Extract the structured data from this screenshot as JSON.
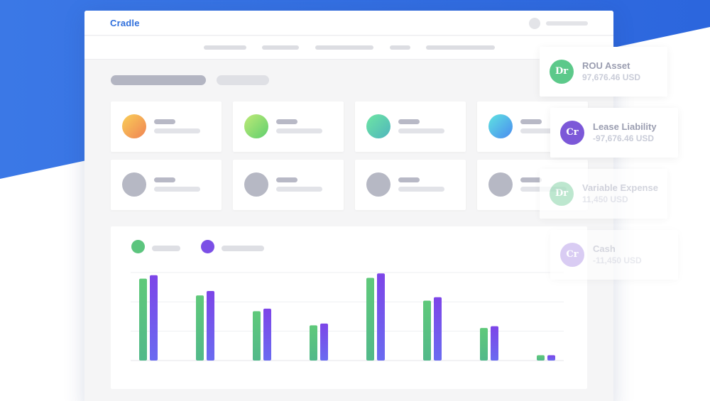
{
  "colors": {
    "brand": "#2f6fdc",
    "series_green": "#5cc57e",
    "series_purple": "#7b4fe6"
  },
  "header": {
    "brand": "Cradle"
  },
  "nav": {
    "items_count_visible": 5
  },
  "cards": [
    {
      "icon": "orange-gradient-circle"
    },
    {
      "icon": "green-gradient-circle"
    },
    {
      "icon": "teal-gradient-circle"
    },
    {
      "icon": "blue-gradient-circle"
    },
    {
      "icon": "gray-circle"
    },
    {
      "icon": "gray-circle"
    },
    {
      "icon": "gray-circle"
    },
    {
      "icon": "gray-circle"
    }
  ],
  "chart_data": {
    "type": "bar",
    "categories": [
      "",
      "",
      "",
      "",
      "",
      "",
      "",
      ""
    ],
    "series": [
      {
        "values": [
          93,
          74,
          56,
          40,
          94,
          68,
          37,
          6
        ]
      },
      {
        "values": [
          97,
          79,
          59,
          42,
          99,
          72,
          39,
          6
        ]
      }
    ],
    "ylim": [
      0,
      100
    ],
    "grid": true
  },
  "journal": [
    {
      "badge": "Dr",
      "name": "ROU Asset",
      "amount": "97,676.46 USD",
      "color": "#5cc98a"
    },
    {
      "badge": "Cr",
      "name": "Lease Liability",
      "amount": "-97,676.46 USD",
      "color": "#7c58d8"
    },
    {
      "badge": "Dr",
      "name": "Variable Expense",
      "amount": "11,450 USD",
      "color": "#a8e0c0"
    },
    {
      "badge": "Cr",
      "name": "Cash",
      "amount": "-11,450 USD",
      "color": "#c6b2ee"
    }
  ]
}
